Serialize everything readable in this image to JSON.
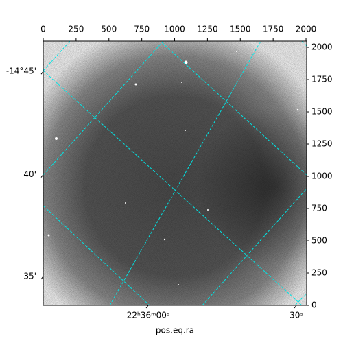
{
  "chart_data": {
    "type": "image",
    "xlabel": "pos.eq.ra",
    "xlim": [
      0,
      2005
    ],
    "xticks": [
      0,
      250,
      500,
      750,
      1000,
      1250,
      1500,
      1750,
      2000
    ],
    "ylim": [
      0,
      2048
    ],
    "yticks": [
      0,
      250,
      500,
      750,
      1000,
      1250,
      1500,
      1750,
      2000
    ],
    "world_yticks": [
      {
        "value": 1813,
        "label": "-14°45'"
      },
      {
        "value": 1013,
        "label": "40'"
      },
      {
        "value": 224,
        "label": "35'"
      }
    ],
    "world_xticks": [
      {
        "value": 799,
        "label": "22ʰ36ᵐ00ˢ"
      },
      {
        "value": 1927,
        "label": "30ˢ"
      }
    ],
    "grid_color": "#00e5e5"
  }
}
